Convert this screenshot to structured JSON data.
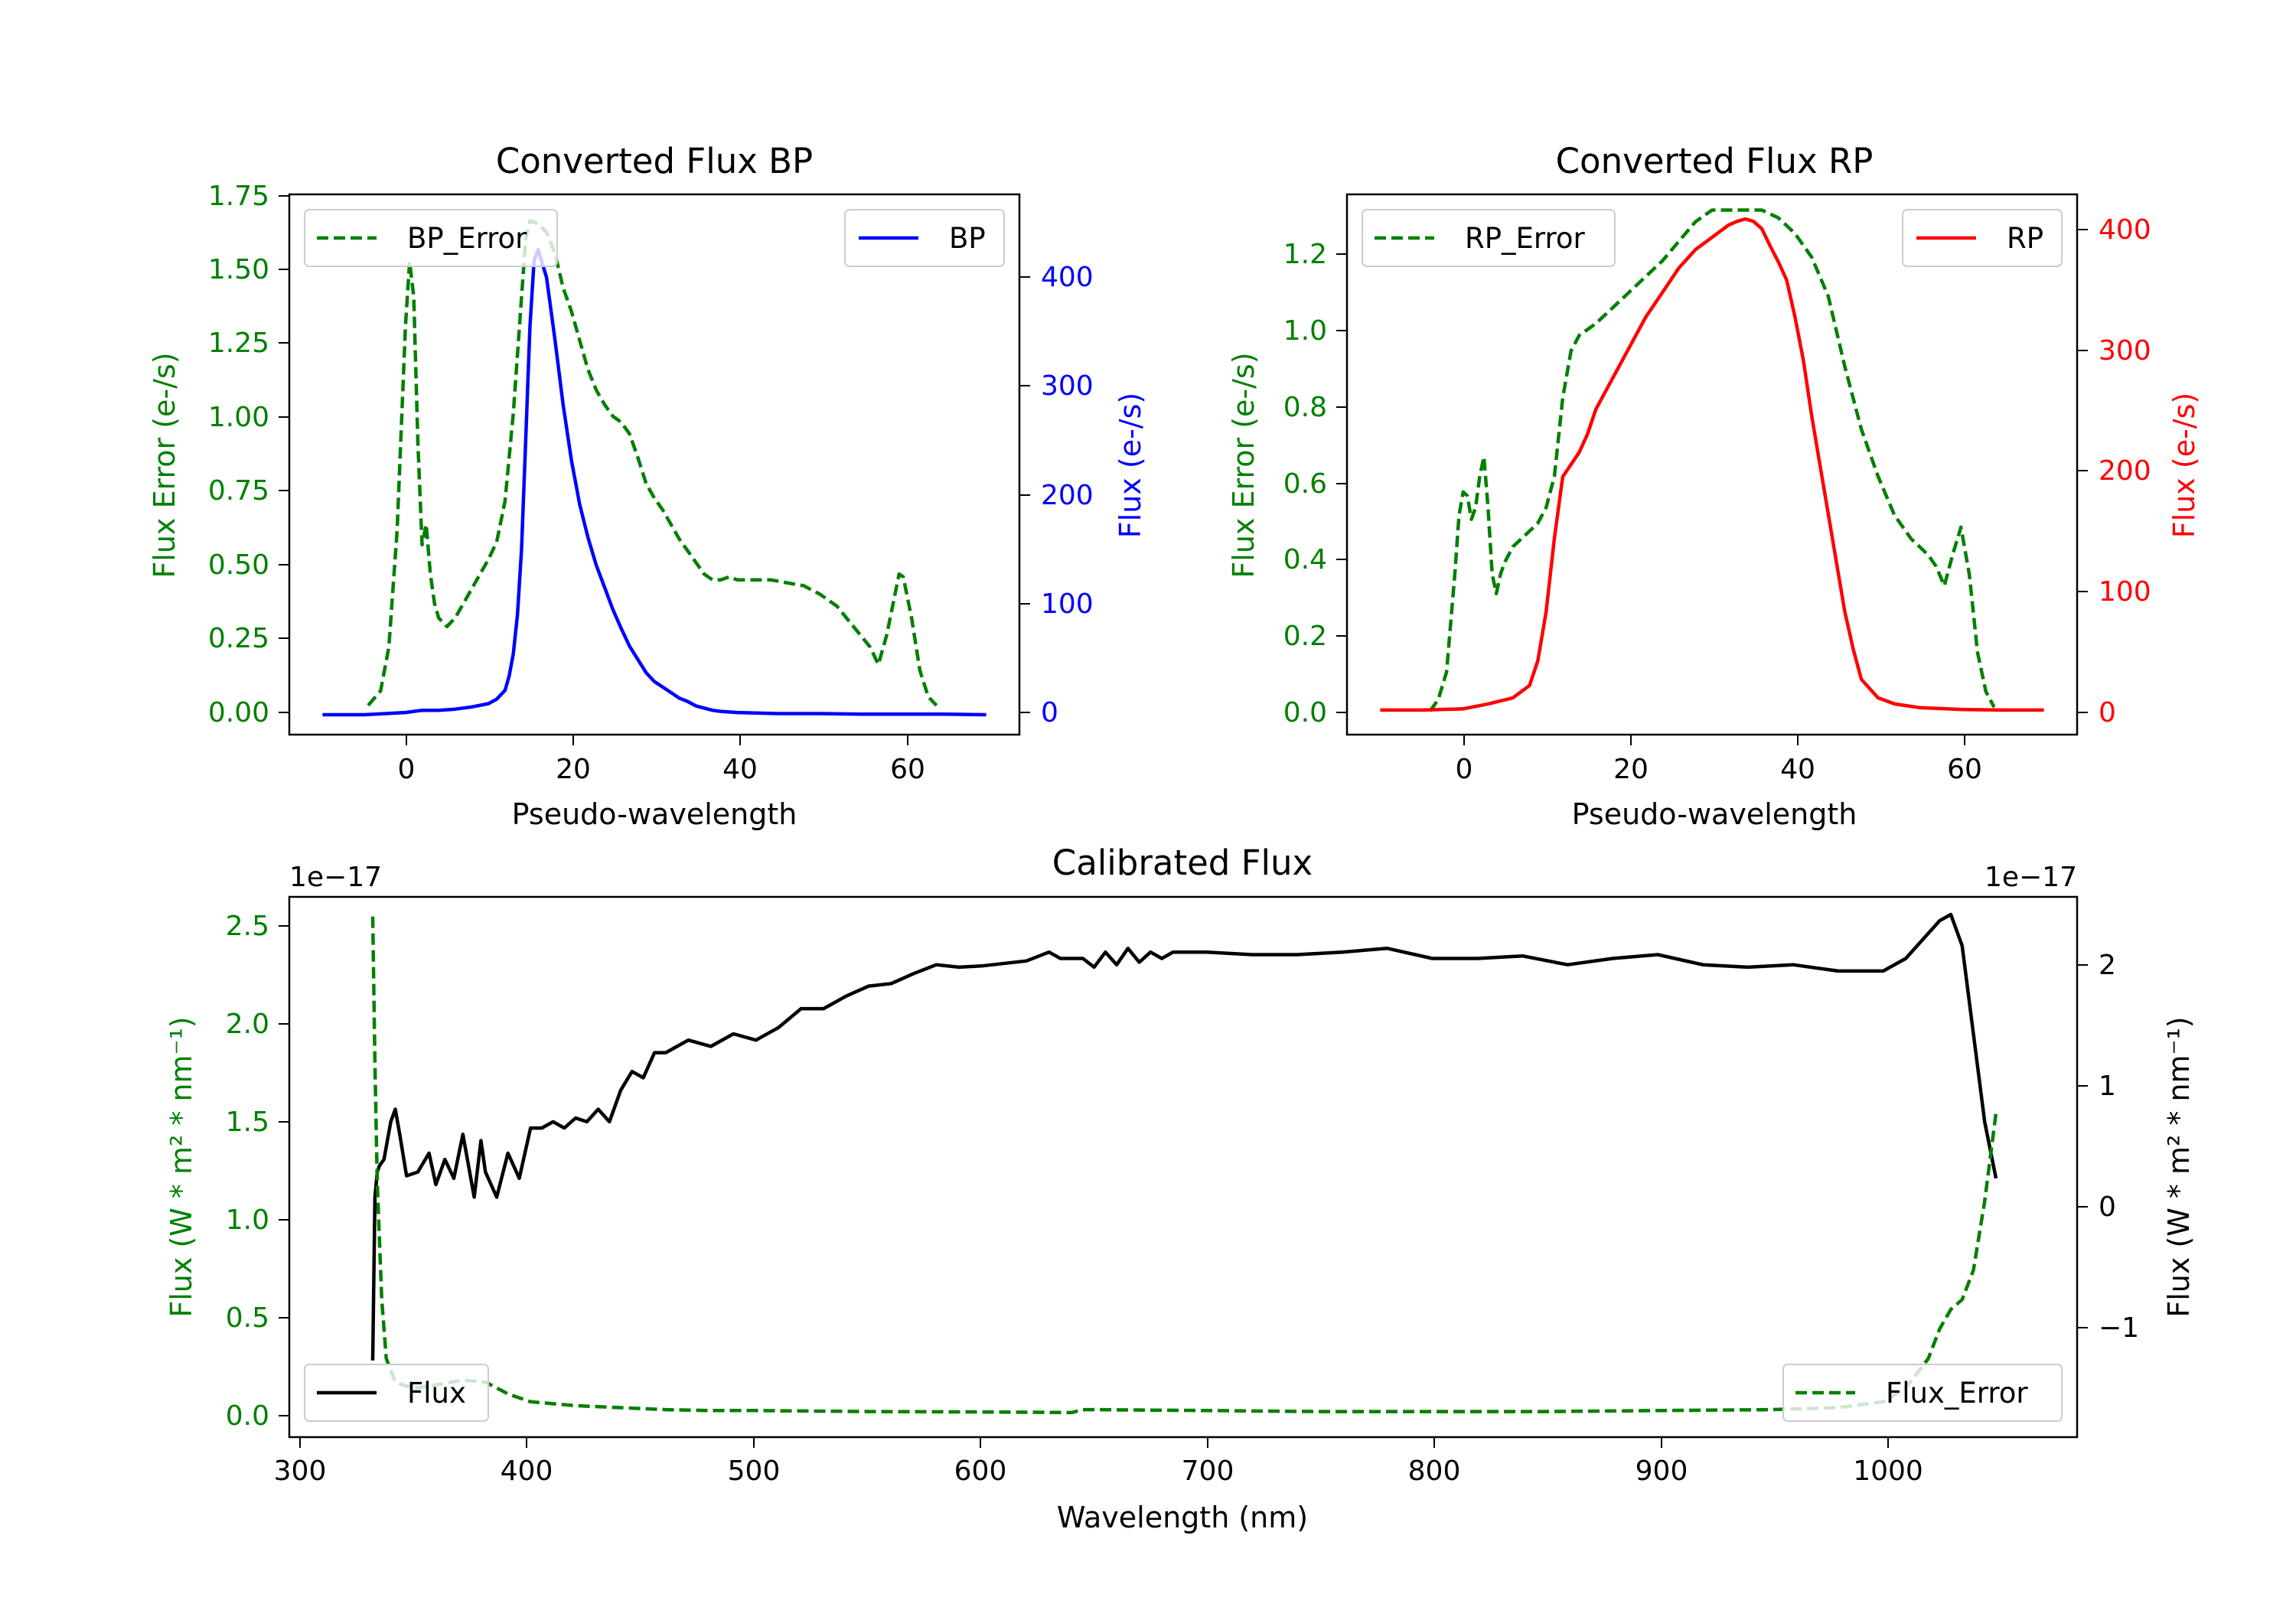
{
  "colors": {
    "green": "#008000",
    "blue": "#0000ff",
    "red": "#ff0000",
    "black": "#000000"
  },
  "chart_data": [
    {
      "type": "line",
      "title": "Converted Flux BP",
      "xlabel": "Pseudo-wavelength",
      "ylabel_left": "Flux Error (e-/s)",
      "ylabel_right": "Flux (e-/s)",
      "xlim": [
        -14,
        74
      ],
      "ylim_left": [
        -0.1,
        1.75
      ],
      "ylim_right": [
        -18,
        470
      ],
      "xticks": [
        "0",
        "20",
        "40",
        "60"
      ],
      "yticks_left": [
        "0.00",
        "0.25",
        "0.50",
        "0.75",
        "1.00",
        "1.25",
        "1.50",
        "1.75"
      ],
      "yticks_right": [
        "0",
        "100",
        "200",
        "300",
        "400"
      ],
      "series": [
        {
          "name": "BP_Error",
          "axis": "left",
          "style": "dashed",
          "color": "#008000",
          "x": [
            -4.5,
            -3,
            -2,
            -1,
            0,
            0.5,
            1,
            1.5,
            2,
            2.5,
            3,
            3.5,
            4,
            5,
            6,
            7,
            8,
            9,
            10,
            11,
            12,
            13,
            14,
            14.5,
            15,
            16,
            17,
            18,
            19,
            20,
            21,
            22,
            23,
            24,
            25,
            26,
            27,
            28,
            29,
            30,
            31,
            32,
            33,
            34,
            35,
            36,
            37,
            38,
            39,
            40,
            42,
            44,
            46,
            48,
            50,
            52,
            54,
            56,
            57,
            58,
            59,
            59.5,
            60,
            61,
            62,
            63,
            64
          ],
          "y": [
            0,
            0.05,
            0.2,
            0.6,
            1.3,
            1.52,
            1.4,
            0.9,
            0.55,
            0.62,
            0.45,
            0.35,
            0.3,
            0.27,
            0.3,
            0.35,
            0.4,
            0.45,
            0.5,
            0.56,
            0.7,
            1.0,
            1.4,
            1.6,
            1.66,
            1.65,
            1.62,
            1.55,
            1.43,
            1.35,
            1.25,
            1.15,
            1.08,
            1.03,
            0.99,
            0.97,
            0.93,
            0.85,
            0.76,
            0.71,
            0.67,
            0.62,
            0.57,
            0.53,
            0.49,
            0.45,
            0.43,
            0.43,
            0.44,
            0.43,
            0.43,
            0.43,
            0.42,
            0.41,
            0.38,
            0.34,
            0.27,
            0.2,
            0.14,
            0.24,
            0.38,
            0.45,
            0.44,
            0.3,
            0.12,
            0.03,
            0
          ]
        },
        {
          "name": "BP",
          "axis": "right",
          "style": "solid",
          "color": "#0000ff",
          "x": [
            -10,
            -5,
            0,
            2,
            4,
            6,
            8,
            10,
            11,
            12,
            12.5,
            13,
            13.5,
            14,
            14.5,
            15,
            15.5,
            16,
            17,
            18,
            19,
            20,
            21,
            22,
            23,
            24,
            25,
            26,
            27,
            28,
            29,
            30,
            31,
            32,
            33,
            34,
            35,
            36,
            37,
            38,
            40,
            45,
            50,
            55,
            60,
            65,
            70
          ],
          "y": [
            0,
            0,
            2,
            4,
            4,
            5,
            7,
            10,
            14,
            22,
            35,
            55,
            90,
            150,
            250,
            350,
            410,
            420,
            395,
            340,
            280,
            230,
            190,
            160,
            135,
            115,
            95,
            78,
            62,
            50,
            38,
            30,
            25,
            20,
            15,
            12,
            8,
            6,
            4,
            3,
            2,
            1,
            1,
            0.5,
            0.5,
            0.5,
            0
          ]
        }
      ],
      "legend": [
        {
          "label": "BP_Error",
          "position": "upper-left"
        },
        {
          "label": "BP",
          "position": "upper-right"
        }
      ]
    },
    {
      "type": "line",
      "title": "Converted Flux RP",
      "xlabel": "Pseudo-wavelength",
      "ylabel_left": "Flux Error (e-/s)",
      "ylabel_right": "Flux (e-/s)",
      "xlim": [
        -14,
        74
      ],
      "ylim_left": [
        -0.06,
        1.32
      ],
      "ylim_right": [
        -20,
        420
      ],
      "xticks": [
        "0",
        "20",
        "40",
        "60"
      ],
      "yticks_left": [
        "0.0",
        "0.2",
        "0.4",
        "0.6",
        "0.8",
        "1.0",
        "1.2"
      ],
      "yticks_right": [
        "0",
        "100",
        "200",
        "300",
        "400"
      ],
      "series": [
        {
          "name": "RP_Error",
          "axis": "left",
          "style": "dashed",
          "color": "#008000",
          "x": [
            -4,
            -3,
            -2,
            -1,
            -0.5,
            0,
            0.5,
            1,
            1.5,
            2,
            2.5,
            3,
            3.5,
            4,
            4.5,
            5,
            6,
            7,
            8,
            9,
            10,
            11,
            12,
            13,
            14,
            16,
            18,
            20,
            22,
            24,
            26,
            28,
            30,
            32,
            34,
            36,
            38,
            40,
            42,
            44,
            46,
            48,
            50,
            52,
            54,
            55,
            56,
            57,
            58,
            59,
            60,
            61,
            62,
            63,
            64
          ],
          "y": [
            0,
            0.03,
            0.1,
            0.35,
            0.5,
            0.56,
            0.55,
            0.49,
            0.52,
            0.6,
            0.65,
            0.52,
            0.35,
            0.3,
            0.35,
            0.38,
            0.42,
            0.44,
            0.46,
            0.48,
            0.52,
            0.6,
            0.8,
            0.92,
            0.96,
            0.99,
            1.03,
            1.07,
            1.11,
            1.15,
            1.2,
            1.25,
            1.28,
            1.28,
            1.28,
            1.28,
            1.26,
            1.22,
            1.16,
            1.06,
            0.88,
            0.72,
            0.6,
            0.5,
            0.44,
            0.42,
            0.4,
            0.37,
            0.32,
            0.4,
            0.47,
            0.35,
            0.15,
            0.05,
            0.01
          ]
        },
        {
          "name": "RP",
          "axis": "right",
          "style": "solid",
          "color": "#ff0000",
          "x": [
            -10,
            -5,
            0,
            3,
            6,
            8,
            9,
            10,
            11,
            12,
            13,
            14,
            15,
            16,
            18,
            20,
            22,
            24,
            26,
            28,
            30,
            31,
            32,
            33,
            34,
            35,
            36,
            37,
            38,
            39,
            40,
            41,
            42,
            43,
            44,
            45,
            46,
            47,
            48,
            50,
            52,
            55,
            60,
            65,
            70
          ],
          "y": [
            0,
            0,
            1,
            5,
            10,
            20,
            40,
            80,
            140,
            190,
            200,
            210,
            225,
            245,
            270,
            295,
            320,
            340,
            360,
            375,
            385,
            390,
            395,
            398,
            400,
            398,
            392,
            378,
            365,
            350,
            320,
            285,
            240,
            200,
            160,
            120,
            80,
            50,
            25,
            10,
            5,
            2,
            0.5,
            0,
            0
          ]
        }
      ],
      "legend": [
        {
          "label": "RP_Error",
          "position": "upper-left"
        },
        {
          "label": "RP",
          "position": "upper-right"
        }
      ]
    },
    {
      "type": "line",
      "title": "Calibrated Flux",
      "xlabel": "Wavelength (nm)",
      "ylabel_left": "Flux (W * m² * nm⁻¹)",
      "ylabel_right": "Flux (W * m² * nm⁻¹)",
      "offset_left": "1e−17",
      "offset_right": "1e−17",
      "xlim": [
        293,
        1086
      ],
      "ylim_left": [
        -0.1,
        2.65
      ],
      "ylim_right": [
        -1.91,
        2.39
      ],
      "xticks": [
        "300",
        "400",
        "500",
        "600",
        "700",
        "800",
        "900",
        "1000"
      ],
      "yticks_left": [
        "0.0",
        "0.5",
        "1.0",
        "1.5",
        "2.0",
        "2.5"
      ],
      "yticks_right": [
        "−1",
        "0",
        "1",
        "2"
      ],
      "series": [
        {
          "name": "Flux",
          "axis": "right",
          "style": "solid",
          "color": "#000000",
          "x": [
            330,
            331,
            332,
            333,
            335,
            338,
            340,
            342,
            345,
            350,
            355,
            358,
            362,
            366,
            370,
            375,
            378,
            380,
            385,
            390,
            395,
            400,
            405,
            410,
            415,
            420,
            425,
            430,
            435,
            440,
            445,
            450,
            455,
            460,
            465,
            470,
            480,
            490,
            500,
            510,
            520,
            530,
            540,
            550,
            560,
            570,
            580,
            590,
            600,
            620,
            630,
            635,
            640,
            645,
            650,
            655,
            660,
            665,
            670,
            675,
            680,
            685,
            690,
            700,
            720,
            740,
            760,
            780,
            800,
            820,
            840,
            860,
            880,
            900,
            920,
            940,
            960,
            980,
            1000,
            1010,
            1020,
            1025,
            1030,
            1035,
            1040,
            1045,
            1050
          ],
          "y": [
            -1.3,
            0,
            0.2,
            0.25,
            0.3,
            0.6,
            0.7,
            0.5,
            0.17,
            0.2,
            0.35,
            0.1,
            0.3,
            0.15,
            0.5,
            0.0,
            0.45,
            0.2,
            0.0,
            0.35,
            0.15,
            0.55,
            0.55,
            0.6,
            0.55,
            0.63,
            0.6,
            0.7,
            0.6,
            0.85,
            1.0,
            0.95,
            1.15,
            1.15,
            1.2,
            1.25,
            1.2,
            1.3,
            1.25,
            1.35,
            1.5,
            1.5,
            1.6,
            1.68,
            1.7,
            1.78,
            1.85,
            1.83,
            1.84,
            1.88,
            1.95,
            1.9,
            1.9,
            1.9,
            1.83,
            1.95,
            1.85,
            1.98,
            1.87,
            1.95,
            1.9,
            1.95,
            1.95,
            1.95,
            1.93,
            1.93,
            1.95,
            1.98,
            1.9,
            1.9,
            1.92,
            1.85,
            1.9,
            1.93,
            1.85,
            1.83,
            1.85,
            1.8,
            1.8,
            1.9,
            2.1,
            2.2,
            2.25,
            2.0,
            1.3,
            0.6,
            0.15
          ]
        },
        {
          "name": "Flux_Error",
          "axis": "left",
          "style": "dashed",
          "color": "#008000",
          "x": [
            330,
            331,
            332,
            334,
            336,
            340,
            345,
            350,
            360,
            370,
            380,
            390,
            400,
            420,
            440,
            460,
            480,
            500,
            550,
            600,
            640,
            645,
            650,
            700,
            750,
            800,
            850,
            900,
            950,
            980,
            1000,
            1010,
            1020,
            1025,
            1030,
            1035,
            1040,
            1045,
            1050
          ],
          "y": [
            2.55,
            1.8,
            1.2,
            0.6,
            0.3,
            0.18,
            0.16,
            0.15,
            0.17,
            0.19,
            0.18,
            0.12,
            0.08,
            0.06,
            0.05,
            0.04,
            0.035,
            0.035,
            0.03,
            0.028,
            0.025,
            0.04,
            0.04,
            0.035,
            0.03,
            0.03,
            0.03,
            0.035,
            0.04,
            0.05,
            0.08,
            0.15,
            0.3,
            0.45,
            0.55,
            0.6,
            0.75,
            1.1,
            1.55
          ]
        }
      ],
      "legend": [
        {
          "label": "Flux",
          "position": "lower-left"
        },
        {
          "label": "Flux_Error",
          "position": "lower-right"
        }
      ]
    }
  ]
}
